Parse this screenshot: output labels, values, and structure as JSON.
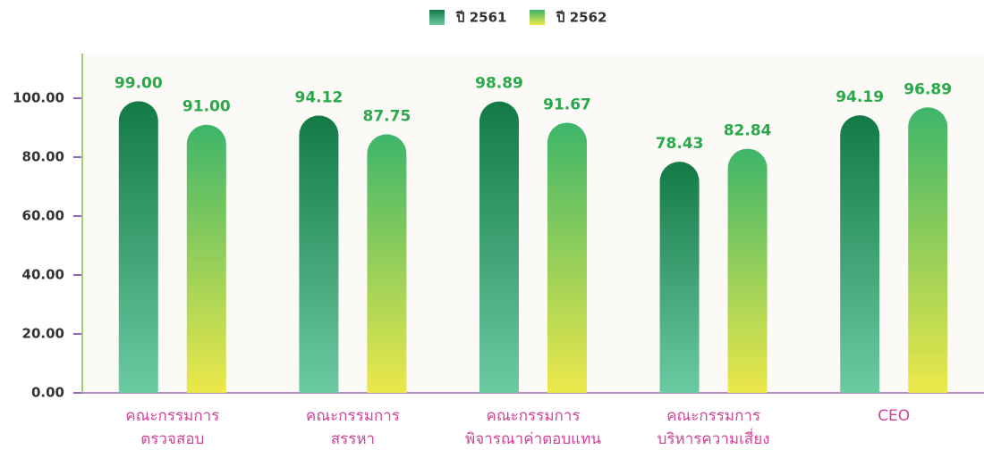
{
  "chart_data": {
    "type": "bar",
    "categories": [
      [
        "คณะกรรมการ",
        "ตรวจสอบ"
      ],
      [
        "คณะกรรมการ",
        "สรรหา"
      ],
      [
        "คณะกรรมการ",
        "พิจารณาค่าตอบแทน"
      ],
      [
        "คณะกรรมการ",
        "บริหารความเสี่ยง"
      ],
      [
        "CEO"
      ]
    ],
    "series": [
      {
        "name": "ปี 2561",
        "colors": [
          "#137a46",
          "#6ccaa2"
        ],
        "values": [
          99.0,
          94.12,
          98.89,
          78.43,
          94.19
        ],
        "value_labels": [
          "99.00",
          "94.12",
          "98.89",
          "78.43",
          "94.19"
        ]
      },
      {
        "name": "ปี 2562",
        "colors": [
          "#3db56a",
          "#ece84a"
        ],
        "values": [
          91.0,
          87.75,
          91.67,
          82.84,
          96.89
        ],
        "value_labels": [
          "91.00",
          "87.75",
          "91.67",
          "82.84",
          "96.89"
        ]
      }
    ],
    "ylim": [
      0,
      110
    ],
    "yticks": [
      {
        "value": 0,
        "label": "0.00"
      },
      {
        "value": 20,
        "label": "20.00"
      },
      {
        "value": 40,
        "label": "40.00"
      },
      {
        "value": 60,
        "label": "60.00"
      },
      {
        "value": 80,
        "label": "80.00"
      },
      {
        "value": 100,
        "label": "100.00"
      }
    ],
    "legend": "top"
  }
}
